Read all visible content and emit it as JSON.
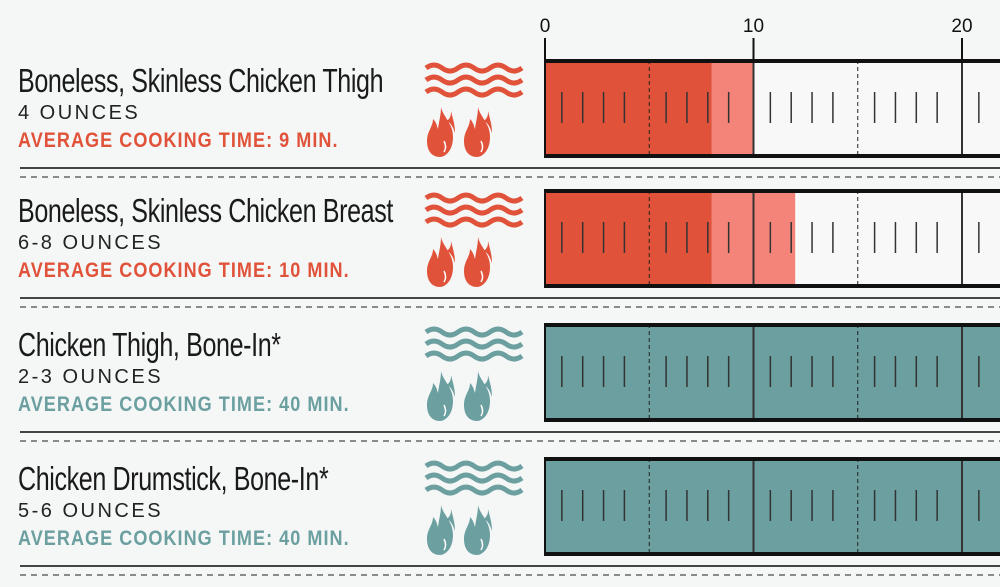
{
  "chart_data": {
    "type": "bar",
    "orientation": "horizontal",
    "x_ticks": [
      0,
      10,
      20
    ],
    "xlim": [
      0,
      22
    ],
    "colors": {
      "poultry_dark": "#e0533a",
      "poultry_light": "#f4847a",
      "bone_in": "#6b9fa0",
      "empty": "#f8f8f8"
    },
    "rows": [
      {
        "title": "Boneless, Skinless Chicken Thigh",
        "weight": "4 OUNCES",
        "avg": "AVERAGE COOKING TIME: 9 MIN.",
        "color": "#e0533a",
        "min_time": 8,
        "max_time": 10,
        "icons": [
          "waves-icon",
          "flame-icon",
          "flame-icon"
        ]
      },
      {
        "title": "Boneless, Skinless Chicken Breast",
        "weight": "6-8 OUNCES",
        "avg": "AVERAGE COOKING TIME: 10 MIN.",
        "color": "#e0533a",
        "min_time": 8,
        "max_time": 12,
        "icons": [
          "waves-icon",
          "flame-icon",
          "flame-icon"
        ]
      },
      {
        "title": "Chicken Thigh, Bone-In*",
        "weight": "2-3 OUNCES",
        "avg": "AVERAGE COOKING TIME: 40 MIN.",
        "color": "#6b9fa0",
        "min_time": 40,
        "max_time": 40,
        "icons": [
          "waves-icon",
          "flame-icon",
          "flame-icon"
        ]
      },
      {
        "title": "Chicken Drumstick, Bone-In*",
        "weight": "5-6 OUNCES",
        "avg": "AVERAGE COOKING TIME: 40 MIN.",
        "color": "#6b9fa0",
        "min_time": 40,
        "max_time": 40,
        "icons": [
          "waves-icon",
          "flame-icon",
          "flame-icon"
        ]
      }
    ]
  }
}
